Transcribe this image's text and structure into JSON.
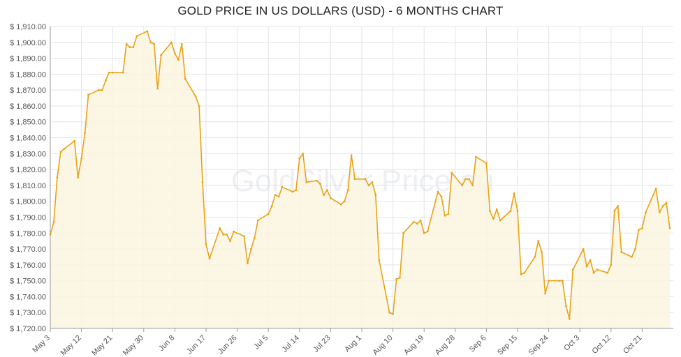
{
  "chart_data": {
    "type": "area",
    "title": "GOLD PRICE IN US DOLLARS (USD) - 6 MONTHS CHART",
    "watermark": "GoldSilver Price.eu",
    "ylim": [
      1720,
      1910
    ],
    "y_ticks": [
      "$ 1,720.00",
      "$ 1,730.00",
      "$ 1,740.00",
      "$ 1,750.00",
      "$ 1,760.00",
      "$ 1,770.00",
      "$ 1,780.00",
      "$ 1,790.00",
      "$ 1,800.00",
      "$ 1,810.00",
      "$ 1,820.00",
      "$ 1,830.00",
      "$ 1,840.00",
      "$ 1,850.00",
      "$ 1,860.00",
      "$ 1,870.00",
      "$ 1,880.00",
      "$ 1,890.00",
      "$ 1,900.00",
      "$ 1,910.00"
    ],
    "x_ticks": [
      "May 3",
      "May 12",
      "May 21",
      "May 30",
      "Jun 8",
      "Jun 17",
      "Jun 26",
      "Jul 5",
      "Jul 14",
      "Jul 23",
      "Aug 1",
      "Aug 10",
      "Aug 19",
      "Aug 28",
      "Sep 6",
      "Sep 15",
      "Sep 24",
      "Oct 3",
      "Oct 12",
      "Oct 21"
    ],
    "x_range": [
      "May 3",
      "Oct 30"
    ],
    "grid": true,
    "colors": {
      "line": "#e8a317",
      "fill": "#fbf4e0",
      "grid": "#e4e4e4"
    },
    "series": [
      {
        "x": [
          "May 3",
          "May 4",
          "May 5",
          "May 6",
          "May 7",
          "May 10",
          "May 11",
          "May 12",
          "May 13",
          "May 14",
          "May 17",
          "May 18",
          "May 19",
          "May 20",
          "May 21",
          "May 24",
          "May 25",
          "May 26",
          "May 27",
          "May 28",
          "May 31",
          "Jun 1",
          "Jun 2",
          "Jun 3",
          "Jun 4",
          "Jun 7",
          "Jun 8",
          "Jun 9",
          "Jun 10",
          "Jun 11",
          "Jun 14",
          "Jun 15",
          "Jun 16",
          "Jun 17",
          "Jun 18",
          "Jun 21",
          "Jun 22",
          "Jun 23",
          "Jun 24",
          "Jun 25",
          "Jun 28",
          "Jun 29",
          "Jun 30",
          "Jul 1",
          "Jul 2",
          "Jul 5",
          "Jul 6",
          "Jul 7",
          "Jul 8",
          "Jul 9",
          "Jul 12",
          "Jul 13",
          "Jul 14",
          "Jul 15",
          "Jul 16",
          "Jul 19",
          "Jul 20",
          "Jul 21",
          "Jul 22",
          "Jul 23",
          "Jul 26",
          "Jul 27",
          "Jul 28",
          "Jul 29",
          "Jul 30",
          "Aug 2",
          "Aug 3",
          "Aug 4",
          "Aug 5",
          "Aug 6",
          "Aug 9",
          "Aug 10",
          "Aug 11",
          "Aug 12",
          "Aug 13",
          "Aug 16",
          "Aug 17",
          "Aug 18",
          "Aug 19",
          "Aug 20",
          "Aug 23",
          "Aug 24",
          "Aug 25",
          "Aug 26",
          "Aug 27",
          "Aug 30",
          "Aug 31",
          "Sep 1",
          "Sep 2",
          "Sep 3",
          "Sep 6",
          "Sep 7",
          "Sep 8",
          "Sep 9",
          "Sep 10",
          "Sep 13",
          "Sep 14",
          "Sep 15",
          "Sep 16",
          "Sep 17",
          "Sep 20",
          "Sep 21",
          "Sep 22",
          "Sep 23",
          "Sep 24",
          "Sep 27",
          "Sep 28",
          "Sep 29",
          "Sep 30",
          "Oct 1",
          "Oct 4",
          "Oct 5",
          "Oct 6",
          "Oct 7",
          "Oct 8",
          "Oct 11",
          "Oct 12",
          "Oct 13",
          "Oct 14",
          "Oct 15",
          "Oct 18",
          "Oct 19",
          "Oct 20",
          "Oct 21",
          "Oct 22",
          "Oct 25",
          "Oct 26",
          "Oct 27",
          "Oct 28",
          "Oct 29"
        ],
        "values": [
          1779,
          1787,
          1815,
          1831,
          1833,
          1838,
          1815,
          1827,
          1843,
          1867,
          1870,
          1870,
          1876,
          1881,
          1881,
          1881,
          1899,
          1897,
          1897,
          1904,
          1907,
          1900,
          1899,
          1871,
          1892,
          1900,
          1893,
          1889,
          1899,
          1877,
          1866,
          1860,
          1812,
          1773,
          1764,
          1783,
          1779,
          1779,
          1775,
          1781,
          1778,
          1761,
          1770,
          1777,
          1788,
          1792,
          1797,
          1804,
          1803,
          1809,
          1806,
          1807,
          1827,
          1830,
          1812,
          1813,
          1811,
          1804,
          1807,
          1802,
          1798,
          1800,
          1807,
          1829,
          1814,
          1814,
          1810,
          1812,
          1804,
          1763,
          1730,
          1729,
          1751,
          1752,
          1780,
          1787,
          1786,
          1788,
          1780,
          1781,
          1806,
          1803,
          1791,
          1792,
          1818,
          1810,
          1814,
          1814,
          1810,
          1828,
          1824,
          1794,
          1789,
          1795,
          1788,
          1794,
          1805,
          1794,
          1754,
          1755,
          1765,
          1775,
          1768,
          1742,
          1750,
          1750,
          1750,
          1734,
          1726,
          1757,
          1770,
          1759,
          1763,
          1755,
          1757,
          1755,
          1760,
          1794,
          1797,
          1768,
          1765,
          1770,
          1782,
          1783,
          1793,
          1808,
          1793,
          1797,
          1799,
          1783
        ]
      }
    ]
  }
}
